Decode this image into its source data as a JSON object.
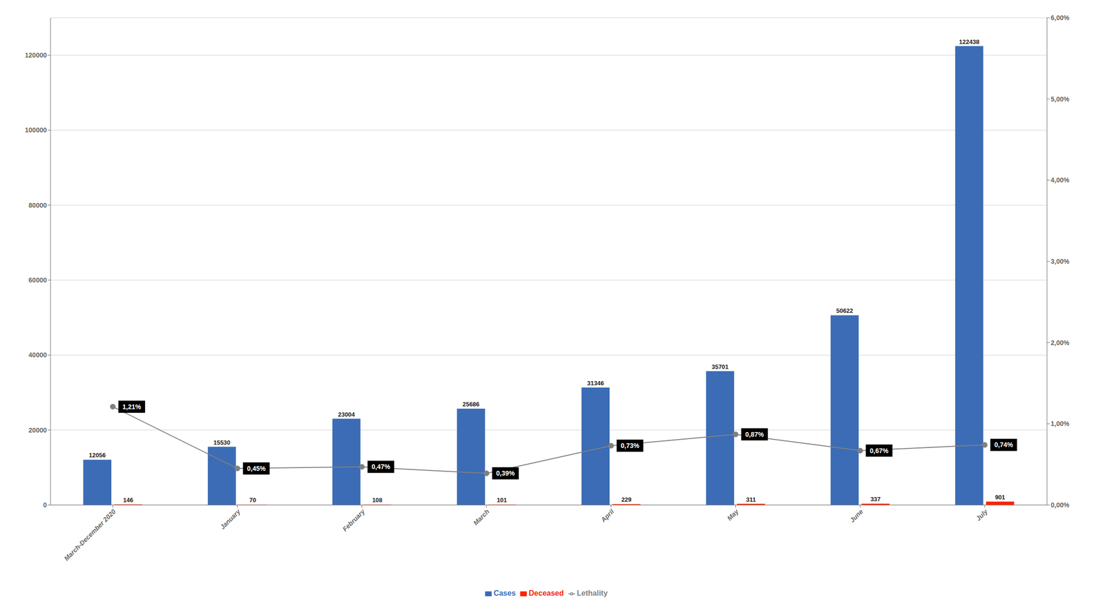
{
  "chart_data": {
    "type": "bar",
    "categories": [
      "March-December 2020",
      "January",
      "February",
      "March",
      "April",
      "May",
      "June",
      "July"
    ],
    "series": [
      {
        "name": "Cases",
        "type": "bar",
        "color": "#3B6CB5",
        "values": [
          12056,
          15530,
          23004,
          25686,
          31346,
          35701,
          50622,
          122438
        ]
      },
      {
        "name": "Deceased",
        "type": "bar",
        "color": "#FF2200",
        "values": [
          146,
          70,
          108,
          101,
          229,
          311,
          337,
          901
        ]
      },
      {
        "name": "Lethality",
        "type": "line",
        "axis": "y2",
        "color": "#808080",
        "marker": "circle",
        "values": [
          1.21,
          0.45,
          0.47,
          0.39,
          0.73,
          0.87,
          0.67,
          0.74
        ],
        "value_labels": [
          "1,21%",
          "0,45%",
          "0,47%",
          "0,39%",
          "0,73%",
          "0,87%",
          "0,67%",
          "0,74%"
        ]
      }
    ],
    "ylim": [
      0,
      130000
    ],
    "yticks": [
      0,
      20000,
      40000,
      60000,
      80000,
      100000,
      120000
    ],
    "y2lim": [
      0,
      6.0
    ],
    "y2ticks": [
      {
        "value": 0.0,
        "label": "0,00%"
      },
      {
        "value": 1.0,
        "label": "1,00%"
      },
      {
        "value": 2.0,
        "label": "2,00%"
      },
      {
        "value": 3.0,
        "label": "3,00%"
      },
      {
        "value": 4.0,
        "label": "4,00%"
      },
      {
        "value": 5.0,
        "label": "5,00%"
      },
      {
        "value": 6.0,
        "label": "6,00%"
      }
    ],
    "grid": true,
    "legend": "bottom",
    "data_labels": true
  }
}
